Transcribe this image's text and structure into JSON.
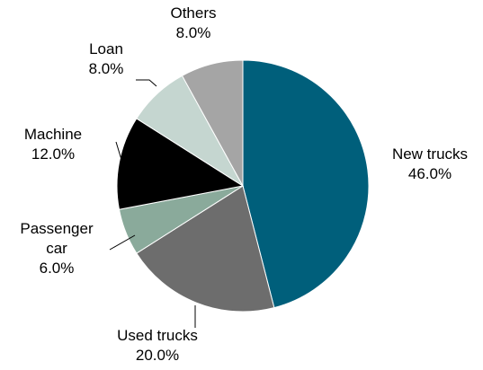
{
  "chart_data": {
    "type": "pie",
    "start_angle_deg": 0,
    "direction": "clockwise",
    "slices": [
      {
        "label_lines": [
          "New trucks"
        ],
        "value_label": "46.0%",
        "value": 46.0,
        "color": "#005f7b"
      },
      {
        "label_lines": [
          "Used trucks"
        ],
        "value_label": "20.0%",
        "value": 20.0,
        "color": "#6d6d6d"
      },
      {
        "label_lines": [
          "Passenger",
          "car"
        ],
        "value_label": "6.0%",
        "value": 6.0,
        "color": "#8aaa9b"
      },
      {
        "label_lines": [
          "Machine"
        ],
        "value_label": "12.0%",
        "value": 12.0,
        "color": "#000000"
      },
      {
        "label_lines": [
          "Loan"
        ],
        "value_label": "8.0%",
        "value": 8.0,
        "color": "#c5d6d0"
      },
      {
        "label_lines": [
          "Others"
        ],
        "value_label": "8.0%",
        "value": 8.0,
        "color": "#a5a5a5"
      }
    ]
  }
}
